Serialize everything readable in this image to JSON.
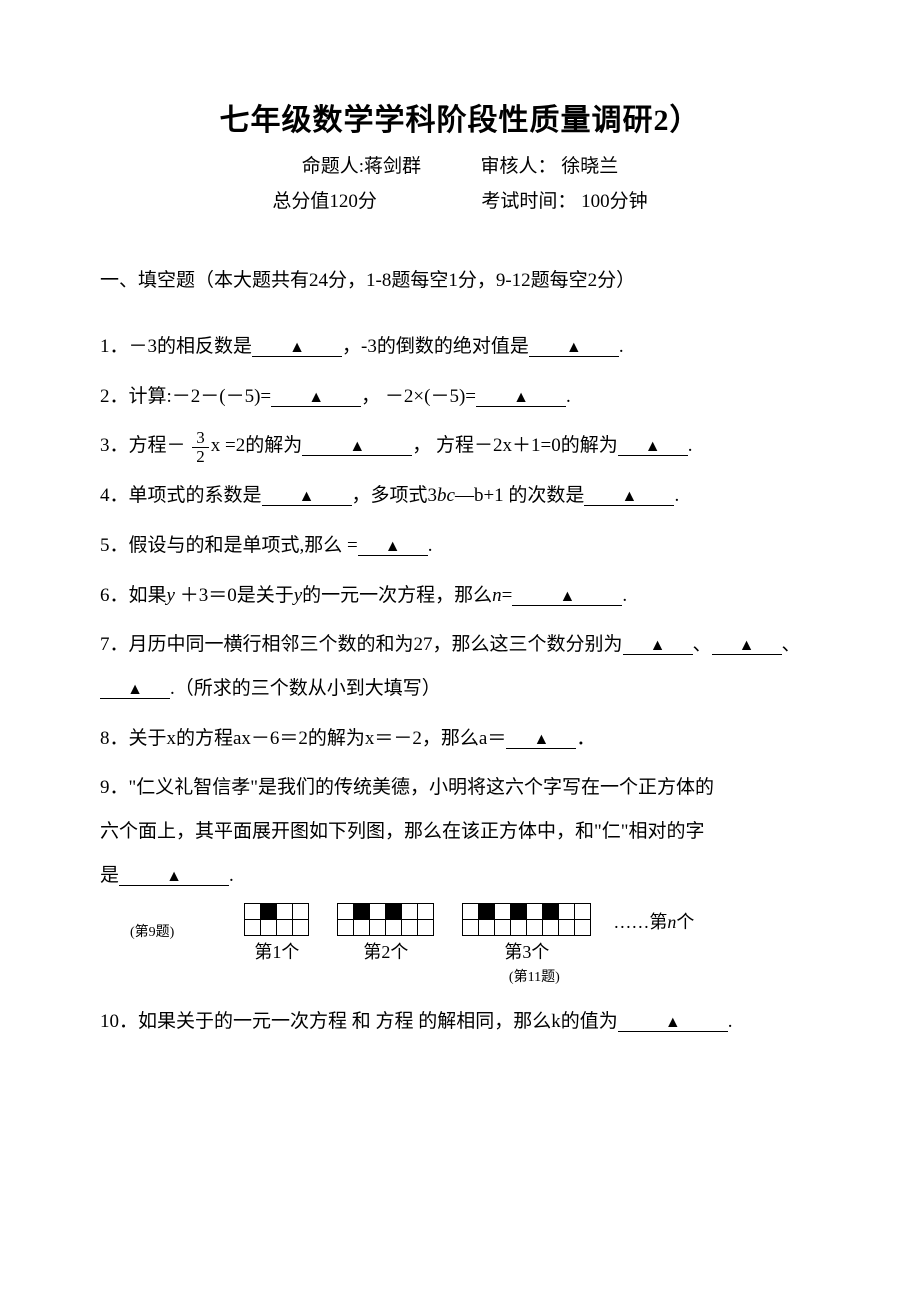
{
  "title": "七年级数学学科阶段性质量调研2）",
  "authors": {
    "author_label": "命题人:蒋剑群",
    "reviewer_label": "审核人：  徐晓兰"
  },
  "exam_info": {
    "total_label": "总分值120分",
    "time_label": "考试时间：  100分钟"
  },
  "section1_header": "一、填空题（本大题共有24分，1-8题每空1分，9-12题每空2分）",
  "triangle": "▲",
  "q1": {
    "prefix": "1．－3的相反数是",
    "mid": "，-3的倒数的绝对值是",
    "suffix": "."
  },
  "q2": {
    "prefix": "2．计算:－2－(－5)=",
    "mid": "，   －2×(－5)=",
    "suffix": "."
  },
  "q3": {
    "prefix": "3．方程－ ",
    "frac_num": "3",
    "frac_den": "2",
    "after_frac": "x  =2的解为",
    "mid": "，   方程－2x＋1=0的解为",
    "suffix": "."
  },
  "q4": {
    "prefix": "4．单项式的系数是",
    "mid": "，多项式3",
    "bc": "bc",
    "after_bc": "—b+1  的次数是",
    "suffix": "."
  },
  "q5": {
    "prefix": "5．假设与的和是单项式,那么  =",
    "suffix": "."
  },
  "q6": {
    "prefix": "6．如果",
    "y": "y",
    "mid1": "    ＋3＝0是关于",
    "y2": "y",
    "mid2": "的一元一次方程，那么",
    "n": "n",
    "eq": "=",
    "suffix": "."
  },
  "q7": {
    "line1_prefix": "7．月历中同一横行相邻三个数的和为27，那么这三个数分别为",
    "sep1": "、",
    "line2_sep": "、",
    "line2_suffix": ".（所求的三个数从小到大填写）"
  },
  "q8": {
    "prefix": "8．关于x的方程ax－6＝2的解为x＝－2，那么a＝",
    "suffix": "．"
  },
  "q9": {
    "line1": "9．\"仁义礼智信孝\"是我们的传统美德，小明将这六个字写在一个正方体的",
    "line2": "六个面上，其平面展开图如下列图，那么在该正方体中，和\"仁\"相对的字",
    "line3_prefix": "是",
    "line3_suffix": "."
  },
  "figures": {
    "q9_label": "(第9题)",
    "p1": "第1个",
    "p2": "第2个",
    "p3": "第3个",
    "dots": "……第",
    "n": "n",
    "ge": "个",
    "q11_label": "(第11题)"
  },
  "q10": {
    "prefix": "10．如果关于的一元一次方程  和  方程  的解相同，那么k的值为",
    "suffix": "."
  },
  "patterns": {
    "p1": {
      "cols": 4,
      "fills": [
        [
          0,
          1
        ]
      ]
    },
    "p2": {
      "cols": 6,
      "fills": [
        [
          0,
          1
        ],
        [
          0,
          3
        ]
      ]
    },
    "p3": {
      "cols": 8,
      "fills": [
        [
          0,
          1
        ],
        [
          0,
          3
        ],
        [
          0,
          5
        ]
      ]
    }
  },
  "styling": {
    "page_bg": "#ffffff",
    "text_color": "#000000",
    "title_fontsize": 30,
    "body_fontsize": 19,
    "small_fontsize": 14,
    "line_height": 2.3,
    "cell_size": 16,
    "cell_border": "#000000"
  }
}
